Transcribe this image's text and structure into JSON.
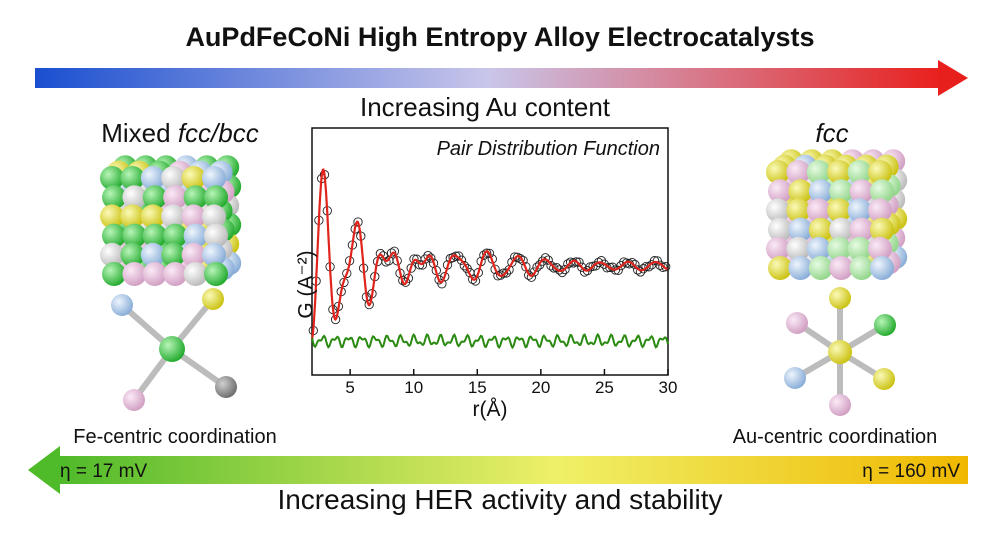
{
  "title": "AuPdFeCoNi High Entropy Alloy Electrocatalysts",
  "subtitle": "Increasing Au content",
  "left_phase": {
    "prefix": "Mixed ",
    "italic": "fcc/bcc"
  },
  "right_phase": "fcc",
  "left_coordination": "Fe-centric coordination",
  "right_coordination": "Au-centric coordination",
  "eta_left": "η = 17 mV",
  "eta_right": "η = 160 mV",
  "bottom_label": "Increasing HER activity and stability",
  "colors": {
    "top_arrow_start": "#1a4fd0",
    "top_arrow_mid": "#c9c6ea",
    "top_arrow_end": "#e8201d",
    "bottom_arrow_start": "#4fba2a",
    "bottom_arrow_mid": "#eff068",
    "bottom_arrow_end": "#f0b800",
    "fit_line": "#e0231b",
    "difference_line": "#2a8a12",
    "atom_green": "#2fc93b",
    "atom_pink": "#e6bcd9",
    "atom_blue": "#a9c7e6",
    "atom_yellow": "#e8e02a",
    "atom_gray": "#d9d9d9",
    "atom_lightgreen": "#a8e6a0"
  },
  "chart_data": {
    "type": "line",
    "title": "Pair Distribution Function",
    "xlabel": "r(Å)",
    "ylabel": "G (A⁻²)",
    "xlim": [
      2,
      30
    ],
    "xticks": [
      5,
      10,
      15,
      20,
      25,
      30
    ],
    "series": [
      {
        "style": "open-circles"
      },
      {
        "style": "red-line"
      },
      {
        "style": "green-line"
      }
    ]
  }
}
